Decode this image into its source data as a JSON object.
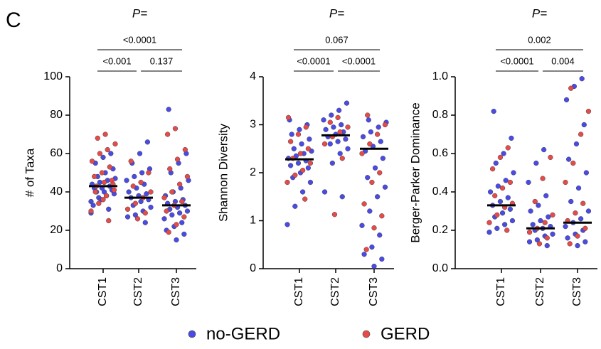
{
  "panel_label": "C",
  "legend": [
    {
      "name": "no-GERD",
      "color": "#4a4ae8"
    },
    {
      "name": "GERD",
      "color": "#e84a4a"
    }
  ],
  "chart_data": [
    {
      "type": "strip",
      "title": "P=",
      "y_label": "# of Taxa",
      "categories": [
        "CST1",
        "CST2",
        "CST3"
      ],
      "ylim": [
        0,
        100
      ],
      "yticks": [
        0,
        20,
        40,
        60,
        80,
        100
      ],
      "medians": [
        43,
        37,
        33
      ],
      "comparisons": [
        {
          "label": "<0.0001",
          "groups": [
            0,
            2
          ]
        },
        {
          "label": "<0.001",
          "groups": [
            0,
            1
          ]
        },
        {
          "label": "0.137",
          "groups": [
            1,
            2
          ]
        }
      ],
      "series": [
        {
          "values": [
            [
              35,
              37,
              38,
              39,
              40,
              40,
              41,
              42,
              42,
              43,
              44,
              45,
              46,
              47,
              48,
              50,
              52,
              55,
              58,
              60,
              33,
              36,
              31,
              29
            ],
            [
              24,
              27,
              28,
              30,
              32,
              33,
              35,
              36,
              37,
              38,
              39,
              40,
              42,
              44,
              46,
              48,
              50,
              52,
              55,
              60,
              66
            ],
            [
              15,
              18,
              20,
              22,
              24,
              26,
              28,
              29,
              30,
              31,
              32,
              33,
              34,
              35,
              36,
              38,
              40,
              42,
              46,
              50,
              55,
              60,
              83
            ]
          ]
        },
        {
          "values": [
            [
              25,
              30,
              34,
              38,
              41,
              43,
              45,
              46,
              48,
              50,
              53,
              56,
              60,
              62,
              65,
              68,
              70,
              44,
              40,
              36
            ],
            [
              26,
              29,
              31,
              34,
              37,
              40,
              43,
              45,
              50,
              56
            ],
            [
              19,
              23,
              27,
              30,
              33,
              35,
              37,
              40,
              44,
              48,
              52,
              57,
              62,
              70,
              73
            ]
          ]
        }
      ]
    },
    {
      "type": "strip",
      "title": "P=",
      "y_label": "Shannon Diversity",
      "categories": [
        "CST1",
        "CST2",
        "CST3"
      ],
      "ylim": [
        0,
        4
      ],
      "yticks": [
        0,
        1,
        2,
        3,
        4
      ],
      "medians": [
        2.28,
        2.78,
        2.5
      ],
      "comparisons": [
        {
          "label": "0.067",
          "groups": [
            0,
            2
          ]
        },
        {
          "label": "<0.0001",
          "groups": [
            0,
            1
          ]
        },
        {
          "label": "<0.0001",
          "groups": [
            1,
            2
          ]
        }
      ],
      "series": [
        {
          "values": [
            [
              0.92,
              1.3,
              1.6,
              1.8,
              1.9,
              2.0,
              2.1,
              2.15,
              2.2,
              2.25,
              2.3,
              2.35,
              2.4,
              2.45,
              2.5,
              2.6,
              2.7,
              2.8,
              2.9,
              3.0,
              3.1
            ],
            [
              1.5,
              1.6,
              2.2,
              2.4,
              2.5,
              2.6,
              2.65,
              2.7,
              2.75,
              2.8,
              2.85,
              2.9,
              2.95,
              3.0,
              3.1,
              3.2,
              3.3,
              3.45
            ],
            [
              0.05,
              0.2,
              0.3,
              0.45,
              0.7,
              0.9,
              1.2,
              1.5,
              1.7,
              1.9,
              2.1,
              2.3,
              2.45,
              2.55,
              2.65,
              2.75,
              2.85,
              2.95,
              3.05,
              3.1
            ]
          ]
        },
        {
          "values": [
            [
              1.45,
              1.8,
              1.95,
              2.05,
              2.2,
              2.3,
              2.4,
              2.5,
              2.65,
              2.8,
              2.95,
              3.15
            ],
            [
              1.13,
              2.3,
              2.6,
              2.75,
              2.85,
              2.95,
              3.05,
              3.15
            ],
            [
              0.4,
              0.85,
              1.1,
              1.35,
              1.8,
              2.0,
              2.4,
              2.6,
              2.8,
              3.0,
              3.2
            ]
          ]
        }
      ]
    },
    {
      "type": "strip",
      "title": "P=",
      "y_label": "Berger-Parker Dominance",
      "categories": [
        "CST1",
        "CST2",
        "CST3"
      ],
      "ylim": [
        0,
        1
      ],
      "yticks": [
        {
          "value": 0,
          "label": "0.0"
        },
        0.2,
        0.4,
        0.6,
        0.8,
        {
          "value": 1,
          "label": "1.0"
        }
      ],
      "medians": [
        0.33,
        0.21,
        0.24
      ],
      "comparisons": [
        {
          "label": "0.002",
          "groups": [
            0,
            2
          ]
        },
        {
          "label": "<0.0001",
          "groups": [
            0,
            1
          ]
        },
        {
          "label": "0.004",
          "groups": [
            1,
            2
          ]
        }
      ],
      "series": [
        {
          "values": [
            [
              0.19,
              0.21,
              0.23,
              0.25,
              0.27,
              0.29,
              0.31,
              0.33,
              0.35,
              0.37,
              0.4,
              0.43,
              0.46,
              0.5,
              0.55,
              0.6,
              0.68,
              0.82
            ],
            [
              0.12,
              0.14,
              0.15,
              0.17,
              0.18,
              0.2,
              0.21,
              0.22,
              0.23,
              0.25,
              0.27,
              0.3,
              0.33,
              0.38,
              0.45,
              0.55,
              0.62
            ],
            [
              0.12,
              0.14,
              0.16,
              0.18,
              0.2,
              0.22,
              0.24,
              0.26,
              0.3,
              0.35,
              0.42,
              0.5,
              0.57,
              0.65,
              0.75,
              0.88,
              0.95,
              0.99
            ]
          ]
        },
        {
          "values": [
            [
              0.2,
              0.24,
              0.28,
              0.32,
              0.34,
              0.38,
              0.42,
              0.45,
              0.52,
              0.58,
              0.63
            ],
            [
              0.13,
              0.16,
              0.19,
              0.21,
              0.24,
              0.28,
              0.35,
              0.47,
              0.58
            ],
            [
              0.13,
              0.17,
              0.21,
              0.25,
              0.29,
              0.34,
              0.45,
              0.55,
              0.7,
              0.82,
              0.94
            ]
          ]
        }
      ]
    }
  ]
}
